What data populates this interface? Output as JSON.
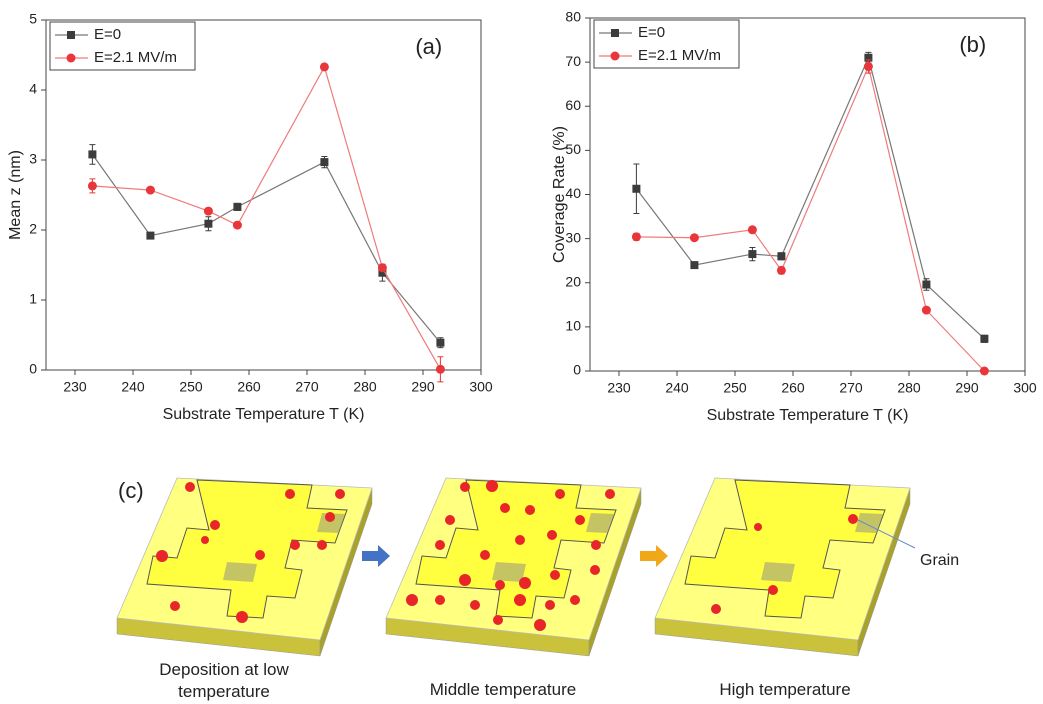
{
  "chart_data": [
    {
      "type": "line",
      "annotation": "(a)",
      "x_label": "Substrate Temperature T (K)",
      "y_label": "Mean z (nm)",
      "x": [
        233,
        243,
        253,
        258,
        273,
        283,
        293
      ],
      "xlim": [
        225,
        300
      ],
      "xticks": [
        230,
        240,
        250,
        260,
        270,
        280,
        290,
        300
      ],
      "ylim": [
        0,
        5
      ],
      "yticks": [
        0,
        1,
        2,
        3,
        4,
        5
      ],
      "legend": "upper left",
      "series": [
        {
          "name": "E=0",
          "color": "#3c3c3c",
          "line_color": "#777777",
          "marker": "square",
          "values": [
            3.08,
            1.92,
            2.09,
            2.33,
            2.97,
            1.39,
            0.39
          ],
          "errors": [
            0.14,
            0.03,
            0.1,
            0.05,
            0.08,
            0.12,
            0.07
          ]
        },
        {
          "name": "E=2.1 MV/m",
          "color": "#e8363a",
          "line_color": "#f07a7c",
          "marker": "circle",
          "values": [
            2.63,
            2.57,
            2.27,
            2.07,
            4.33,
            1.46,
            0.01
          ],
          "errors": [
            0.1,
            0.02,
            0.03,
            0.03,
            0.03,
            0.03,
            0.18
          ]
        }
      ]
    },
    {
      "type": "line",
      "annotation": "(b)",
      "x_label": "Substrate Temperature T (K)",
      "y_label": "Coverage Rate (%)",
      "x": [
        233,
        243,
        253,
        258,
        273,
        283,
        293
      ],
      "xlim": [
        225,
        300
      ],
      "xticks": [
        230,
        240,
        250,
        260,
        270,
        280,
        290,
        300
      ],
      "ylim": [
        0,
        80
      ],
      "yticks": [
        0,
        10,
        20,
        30,
        40,
        50,
        60,
        70,
        80
      ],
      "legend": "upper left",
      "series": [
        {
          "name": "E=0",
          "color": "#3c3c3c",
          "line_color": "#777777",
          "marker": "square",
          "values": [
            41.3,
            24,
            26.5,
            26,
            71,
            19.6,
            7.3
          ],
          "errors": [
            5.6,
            0.5,
            1.5,
            0.8,
            1.2,
            1.3,
            0.8
          ]
        },
        {
          "name": "E=2.1 MV/m",
          "color": "#e8363a",
          "line_color": "#f07a7c",
          "marker": "circle",
          "values": [
            30.4,
            30.2,
            32,
            22.8,
            69,
            13.8,
            0
          ],
          "errors": [
            0.8,
            0.5,
            0.5,
            0.8,
            1.5,
            0.5,
            0.3
          ]
        }
      ]
    }
  ],
  "diagram": {
    "label": "(c)",
    "grain_label": "Grain",
    "captions": [
      "Deposition at low temperature",
      "Middle temperature",
      "High temperature"
    ]
  }
}
